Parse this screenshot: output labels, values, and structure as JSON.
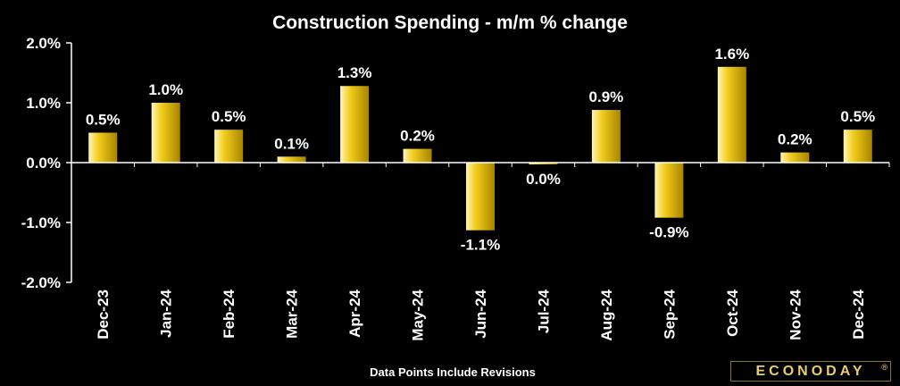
{
  "chart_data": {
    "type": "bar",
    "title": "Construction Spending - m/m % change",
    "footnote": "Data Points Include Revisions",
    "categories": [
      "Dec-23",
      "Jan-24",
      "Feb-24",
      "Mar-24",
      "Apr-24",
      "May-24",
      "Jun-24",
      "Jul-24",
      "Aug-24",
      "Sep-24",
      "Oct-24",
      "Nov-24",
      "Dec-24"
    ],
    "values": [
      0.5,
      1.0,
      0.5,
      0.1,
      1.3,
      0.2,
      -1.1,
      0.0,
      0.9,
      -0.9,
      1.6,
      0.2,
      0.5
    ],
    "bar_heights": [
      0.5,
      1.0,
      0.55,
      0.1,
      1.28,
      0.23,
      -1.13,
      -0.03,
      0.88,
      -0.92,
      1.6,
      0.17,
      0.55
    ],
    "data_labels": [
      "0.5%",
      "1.0%",
      "0.5%",
      "0.1%",
      "1.3%",
      "0.2%",
      "-1.1%",
      "0.0%",
      "0.9%",
      "-0.9%",
      "1.6%",
      "0.2%",
      "0.5%"
    ],
    "y_ticks": [
      2.0,
      1.0,
      0.0,
      -1.0,
      -2.0
    ],
    "y_tick_labels": [
      "2.0%",
      "1.0%",
      "0.0%",
      "-1.0%",
      "-2.0%"
    ],
    "ylim": [
      -2.0,
      2.0
    ],
    "grid": false,
    "legend": "none",
    "colors": {
      "background": "#000000",
      "bar_light": "#fff6b0",
      "bar_mid": "#f2cc1a",
      "bar_dark": "#a88400",
      "text": "#ffffff",
      "axis": "#ffffff"
    }
  },
  "logo": {
    "text": "ECONODAY",
    "mark": "®"
  }
}
